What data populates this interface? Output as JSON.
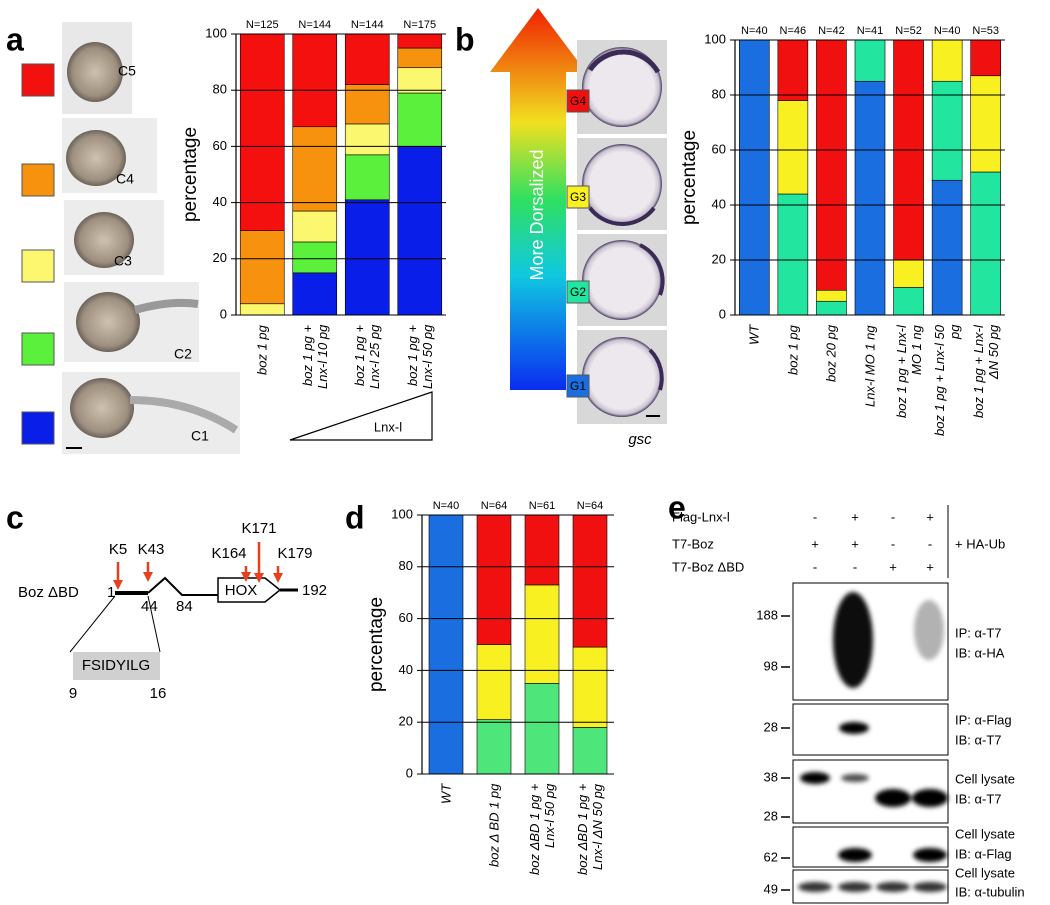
{
  "panel_labels": [
    "a",
    "b",
    "c",
    "d",
    "e"
  ],
  "chart_data": [
    {
      "type": "bar",
      "stacked": true,
      "ylabel": "percentage",
      "categories": [
        "boz 1 pg",
        "boz 1 pg + Lnx-l 10 pg",
        "boz 1 pg + Lnx-l 25 pg",
        "boz 1 pg + Lnx-l 50 pg"
      ],
      "annotations": [
        "N=125",
        "N=144",
        "N=144",
        "N=175"
      ],
      "series": [
        {
          "name": "C1",
          "color": "#0a1eea",
          "values": [
            0,
            15,
            41,
            60
          ]
        },
        {
          "name": "C2",
          "color": "#5af03c",
          "values": [
            0,
            11,
            16,
            19
          ]
        },
        {
          "name": "C3",
          "color": "#fbf870",
          "values": [
            4,
            11,
            11,
            9
          ]
        },
        {
          "name": "C4",
          "color": "#f7920f",
          "values": [
            26,
            30,
            14,
            7
          ]
        },
        {
          "name": "C5",
          "color": "#f51010",
          "values": [
            70,
            33,
            18,
            5
          ]
        }
      ],
      "ylim": [
        0,
        100
      ],
      "yticks": [
        0,
        20,
        40,
        60,
        80,
        100
      ],
      "grid": true,
      "range_label": "Lnx-l"
    },
    {
      "type": "bar",
      "stacked": true,
      "ylabel": "percentage",
      "categories": [
        "WT",
        "boz 1 pg",
        "boz 20 pg",
        "Lnx-l MO 1 ng",
        "boz 1 pg + Lnx-l MO 1 ng",
        "boz 1 pg + Lnx-l 50 pg",
        "boz 1 pg + Lnx-l ΔN 50 pg"
      ],
      "annotations": [
        "N=40",
        "N=46",
        "N=42",
        "N=41",
        "N=52",
        "N=40",
        "N=53"
      ],
      "series": [
        {
          "name": "G1",
          "color": "#1a6ee0",
          "values": [
            100,
            0,
            0,
            85,
            0,
            49,
            0
          ]
        },
        {
          "name": "G2",
          "color": "#22e6a0",
          "values": [
            0,
            44,
            5,
            15,
            10,
            36,
            52
          ]
        },
        {
          "name": "G3",
          "color": "#f8f020",
          "values": [
            0,
            34,
            4,
            0,
            10,
            15,
            35
          ]
        },
        {
          "name": "G4",
          "color": "#f01010",
          "values": [
            0,
            22,
            91,
            0,
            80,
            0,
            13
          ]
        }
      ],
      "ylim": [
        0,
        100
      ],
      "yticks": [
        0,
        20,
        40,
        60,
        80,
        100
      ],
      "grid": true
    },
    {
      "type": "bar",
      "stacked": true,
      "ylabel": "percentage",
      "categories": [
        "WT",
        "boz Δ BD 1 pg",
        "boz ΔBD 1 pg + Lnx-l 50 pg",
        "boz ΔBD 1 pg + Lnx-l ΔN 50 pg"
      ],
      "annotations": [
        "N=40",
        "N=64",
        "N=61",
        "N=64"
      ],
      "series": [
        {
          "color": "#1a6ee0",
          "values": [
            100,
            0,
            0,
            0
          ]
        },
        {
          "color": "#4ee67a",
          "values": [
            0,
            21,
            35,
            18
          ]
        },
        {
          "color": "#f8f020",
          "values": [
            0,
            29,
            38,
            31
          ]
        },
        {
          "color": "#f01010",
          "values": [
            0,
            50,
            27,
            51
          ]
        }
      ],
      "ylim": [
        0,
        100
      ],
      "yticks": [
        0,
        20,
        40,
        60,
        80,
        100
      ],
      "grid": true
    }
  ],
  "images": {
    "arrow_label": "More Dorsalized",
    "caption": "gsc"
  },
  "diagram": {
    "name": "Boz ΔBD",
    "positions": [
      "1",
      "44",
      "84",
      "192"
    ],
    "domain": "HOX",
    "lysines": [
      "K5",
      "K43",
      "K164",
      "K171",
      "K179"
    ],
    "motif": "FSIDYILG",
    "motif_range": [
      "9",
      "16"
    ]
  },
  "blot": {
    "conditions": [
      {
        "name": "Flag-Lnx-l",
        "signs": [
          "-",
          "+",
          "-",
          "+"
        ]
      },
      {
        "name": "T7-Boz",
        "signs": [
          "+",
          "+",
          "-",
          "-"
        ]
      },
      {
        "name": "T7-Boz ΔBD",
        "signs": [
          "-",
          "-",
          "+",
          "+"
        ]
      }
    ],
    "cotreatment": "+ HA-Ub",
    "panels": [
      {
        "markers": [
          188,
          98
        ],
        "labels": [
          "IP: α-T7",
          "IB: α-HA"
        ]
      },
      {
        "markers": [
          28
        ],
        "labels": [
          "IP: α-Flag",
          "IB: α-T7"
        ]
      },
      {
        "markers": [
          38,
          28
        ],
        "labels": [
          "Cell lysate",
          "IB: α-T7"
        ]
      },
      {
        "markers": [
          62
        ],
        "labels": [
          "Cell lysate",
          "IB: α-Flag"
        ]
      },
      {
        "markers": [
          49
        ],
        "labels": [
          "Cell lysate",
          "IB: α-tubulin"
        ]
      }
    ]
  }
}
